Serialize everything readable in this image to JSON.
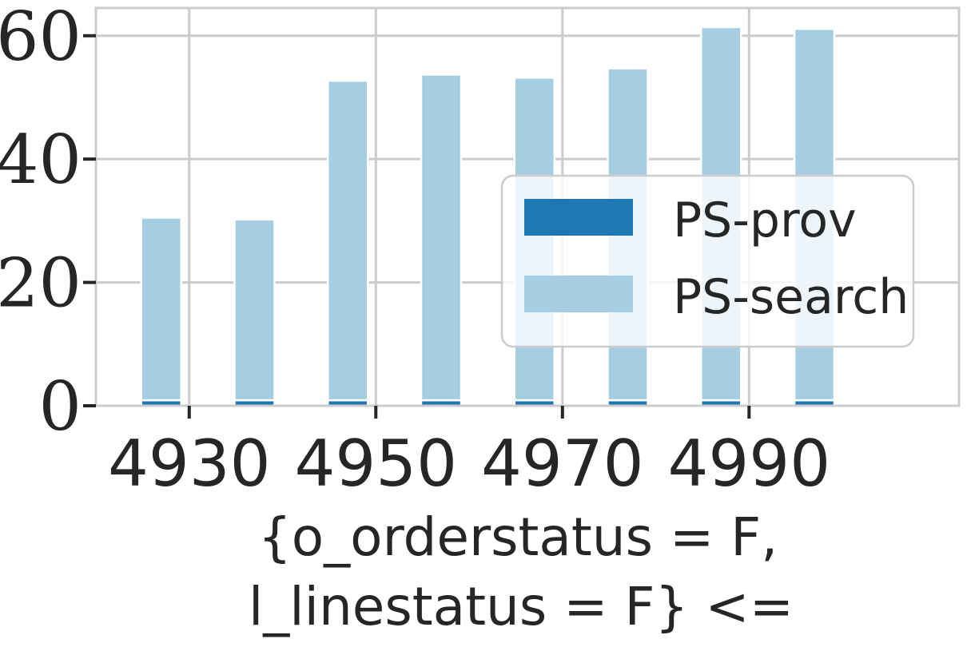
{
  "chart_data": {
    "type": "bar",
    "stacked": true,
    "x": [
      4927,
      4937,
      4947,
      4957,
      4967,
      4977,
      4987,
      4997
    ],
    "series": [
      {
        "name": "PS-prov",
        "values": [
          0.9,
          0.9,
          0.9,
          0.9,
          0.9,
          0.9,
          0.9,
          0.9
        ],
        "color": "#1f77b4"
      },
      {
        "name": "PS-search",
        "values": [
          29.6,
          29.3,
          51.8,
          52.8,
          52.3,
          53.8,
          60.5,
          60.2
        ],
        "color": "#a6cee3"
      }
    ],
    "xticks": [
      4930,
      4950,
      4970,
      4990
    ],
    "xtick_labels": [
      "4930",
      "4950",
      "4970",
      "4990"
    ],
    "yticks": [
      0,
      20,
      40,
      60
    ],
    "ytick_labels": [
      "0",
      "20",
      "40",
      "60"
    ],
    "xlim": [
      4920,
      5012.5
    ],
    "ylim": [
      0,
      64.5
    ],
    "xlabel_lines": [
      "{o_orderstatus = F,",
      "l_linestatus = F} <="
    ],
    "ylabel": "",
    "title": "",
    "grid": true,
    "legend_position": "center-right",
    "colors": {
      "grid": "#cccccc",
      "axes_frame": "#cccccc",
      "text": "#262626",
      "background": "#ffffff"
    }
  }
}
